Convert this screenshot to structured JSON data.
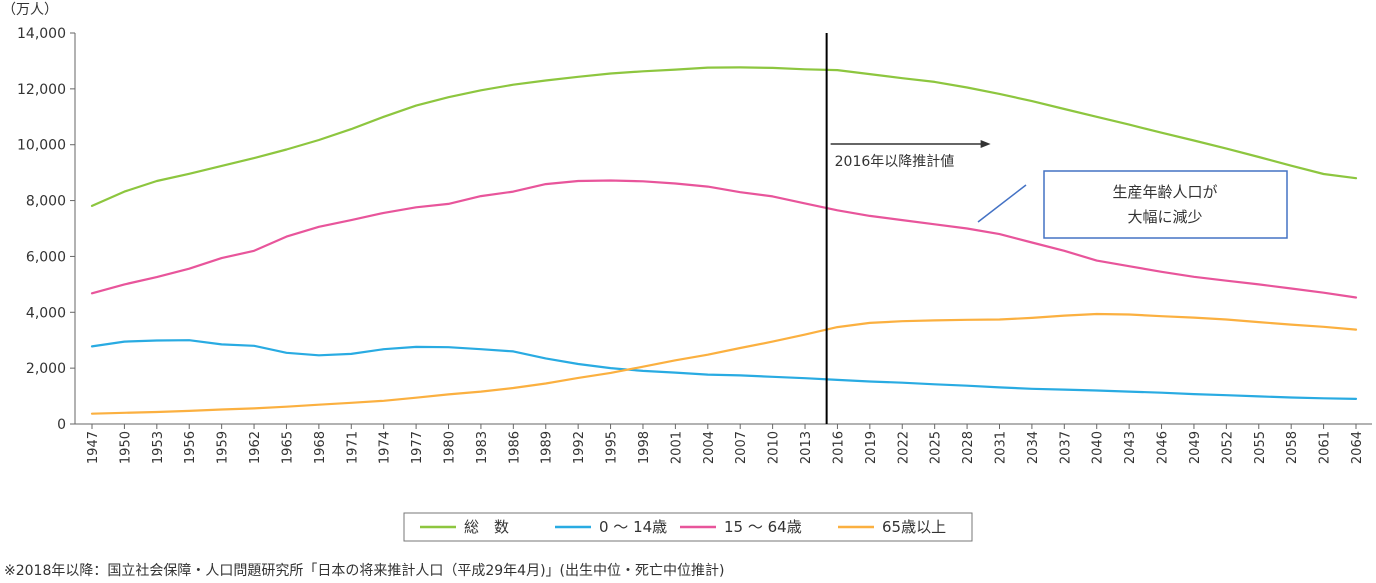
{
  "chart_data": {
    "type": "line",
    "unit_label": "（万人）",
    "ylim": [
      0,
      14000
    ],
    "yticks": [
      0,
      2000,
      4000,
      6000,
      8000,
      10000,
      12000,
      14000
    ],
    "ytick_labels": [
      "0",
      "2,000",
      "4,000",
      "6,000",
      "8,000",
      "10,000",
      "12,000",
      "14,000"
    ],
    "xlim": [
      1947,
      2065
    ],
    "xticks": [
      1947,
      1950,
      1953,
      1956,
      1959,
      1962,
      1965,
      1968,
      1971,
      1974,
      1977,
      1980,
      1983,
      1986,
      1989,
      1992,
      1995,
      1998,
      2001,
      2004,
      2007,
      2010,
      2013,
      2016,
      2019,
      2022,
      2025,
      2028,
      2031,
      2034,
      2037,
      2040,
      2043,
      2046,
      2049,
      2052,
      2055,
      2058,
      2061,
      2064
    ],
    "xtick_labels": [
      "1947",
      "1950",
      "1953",
      "1956",
      "1959",
      "1962",
      "1965",
      "1968",
      "1971",
      "1974",
      "1977",
      "1980",
      "1983",
      "1986",
      "1989",
      "1992",
      "1995",
      "1998",
      "2001",
      "2004",
      "2007",
      "2010",
      "2013",
      "2016",
      "2019",
      "2022",
      "2025",
      "2028",
      "2031",
      "2034",
      "2037",
      "2040",
      "2043",
      "2046",
      "2049",
      "2052",
      "2055",
      "2058",
      "2061",
      "2064"
    ],
    "grid": false,
    "legend_position": "bottom-center",
    "divider_year": 2015,
    "projection_label": "2016年以降推計値",
    "callout": {
      "lines": [
        "生産年齢人口が",
        "大幅に減少"
      ]
    },
    "series": [
      {
        "name": "総　数",
        "color": "#8dc63f",
        "x": [
          1947,
          1950,
          1953,
          1956,
          1959,
          1962,
          1965,
          1968,
          1971,
          1974,
          1977,
          1980,
          1983,
          1986,
          1989,
          1992,
          1995,
          1998,
          2001,
          2004,
          2007,
          2010,
          2013,
          2016,
          2019,
          2022,
          2025,
          2028,
          2031,
          2034,
          2037,
          2040,
          2043,
          2046,
          2049,
          2052,
          2055,
          2058,
          2061,
          2064
        ],
        "y": [
          7810,
          8320,
          8700,
          8960,
          9240,
          9520,
          9830,
          10170,
          10560,
          11000,
          11400,
          11700,
          11950,
          12150,
          12300,
          12430,
          12550,
          12630,
          12690,
          12760,
          12770,
          12750,
          12700,
          12670,
          12530,
          12380,
          12250,
          12050,
          11820,
          11560,
          11280,
          11000,
          10720,
          10430,
          10150,
          9860,
          9560,
          9250,
          8950,
          8800
        ]
      },
      {
        "name": "0 ～ 14歳",
        "color": "#29abe2",
        "x": [
          1947,
          1950,
          1953,
          1956,
          1959,
          1962,
          1965,
          1968,
          1971,
          1974,
          1977,
          1980,
          1983,
          1986,
          1989,
          1992,
          1995,
          1998,
          2001,
          2004,
          2007,
          2010,
          2013,
          2016,
          2019,
          2022,
          2025,
          2028,
          2031,
          2034,
          2037,
          2040,
          2043,
          2046,
          2049,
          2052,
          2055,
          2058,
          2061,
          2064
        ],
        "y": [
          2780,
          2950,
          2990,
          3000,
          2850,
          2800,
          2550,
          2460,
          2510,
          2680,
          2760,
          2750,
          2680,
          2600,
          2350,
          2150,
          2000,
          1900,
          1840,
          1770,
          1740,
          1690,
          1640,
          1580,
          1520,
          1480,
          1420,
          1370,
          1310,
          1260,
          1230,
          1200,
          1160,
          1120,
          1070,
          1030,
          990,
          950,
          920,
          900
        ]
      },
      {
        "name": "15 ～ 64歳",
        "color": "#e8559b",
        "x": [
          1947,
          1950,
          1953,
          1956,
          1959,
          1962,
          1965,
          1968,
          1971,
          1974,
          1977,
          1980,
          1983,
          1986,
          1989,
          1992,
          1995,
          1998,
          2001,
          2004,
          2007,
          2010,
          2013,
          2016,
          2019,
          2022,
          2025,
          2028,
          2031,
          2034,
          2037,
          2040,
          2043,
          2046,
          2049,
          2052,
          2055,
          2058,
          2061,
          2064
        ],
        "y": [
          4680,
          5000,
          5260,
          5560,
          5940,
          6200,
          6710,
          7060,
          7300,
          7560,
          7760,
          7880,
          8160,
          8320,
          8590,
          8700,
          8720,
          8690,
          8610,
          8500,
          8300,
          8150,
          7900,
          7650,
          7450,
          7300,
          7150,
          7000,
          6800,
          6500,
          6200,
          5850,
          5650,
          5450,
          5270,
          5130,
          5000,
          4850,
          4700,
          4530
        ]
      },
      {
        "name": "65歳以上",
        "color": "#fbb040",
        "x": [
          1947,
          1950,
          1953,
          1956,
          1959,
          1962,
          1965,
          1968,
          1971,
          1974,
          1977,
          1980,
          1983,
          1986,
          1989,
          1992,
          1995,
          1998,
          2001,
          2004,
          2007,
          2010,
          2013,
          2016,
          2019,
          2022,
          2025,
          2028,
          2031,
          2034,
          2037,
          2040,
          2043,
          2046,
          2049,
          2052,
          2055,
          2058,
          2061,
          2064
        ],
        "y": [
          370,
          400,
          430,
          470,
          520,
          560,
          620,
          690,
          760,
          830,
          940,
          1060,
          1160,
          1290,
          1450,
          1650,
          1830,
          2050,
          2280,
          2480,
          2720,
          2950,
          3200,
          3470,
          3620,
          3680,
          3710,
          3730,
          3740,
          3800,
          3880,
          3940,
          3920,
          3860,
          3810,
          3740,
          3650,
          3560,
          3480,
          3380
        ]
      }
    ]
  },
  "footnote": "※2018年以降：国立社会保障・人口問題研究所「日本の将来推計人口（平成29年4月)」(出生中位・死亡中位推計)"
}
